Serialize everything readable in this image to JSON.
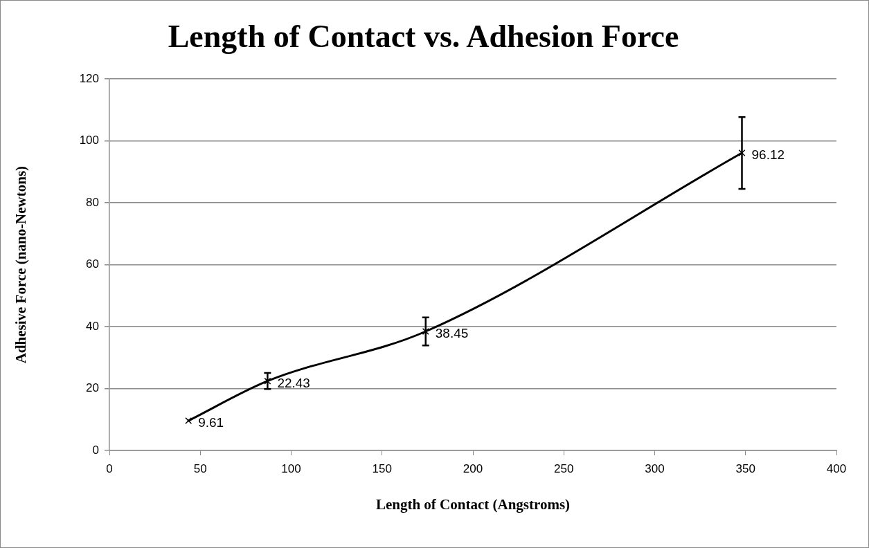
{
  "chart_data": {
    "type": "line",
    "title": "Length of Contact vs. Adhesion Force",
    "xlabel": "Length of Contact (Angstroms)",
    "ylabel": "Adhesive Force (nano-Newtons)",
    "x": [
      43.5,
      87,
      174,
      348
    ],
    "series": [
      {
        "color": "#000000",
        "values": [
          9.61,
          22.43,
          38.45,
          96.12
        ],
        "errors": [
          null,
          2.6,
          4.5,
          11.6
        ]
      }
    ],
    "data_labels": true,
    "marker": "cross",
    "line_style": "solid",
    "grid": "y",
    "legend": false,
    "xlim": [
      0,
      400
    ],
    "xticks": [
      0,
      50,
      100,
      150,
      200,
      250,
      300,
      350,
      400
    ],
    "ylim": [
      0,
      120
    ],
    "yticks": [
      0,
      20,
      40,
      60,
      80,
      100,
      120
    ]
  }
}
